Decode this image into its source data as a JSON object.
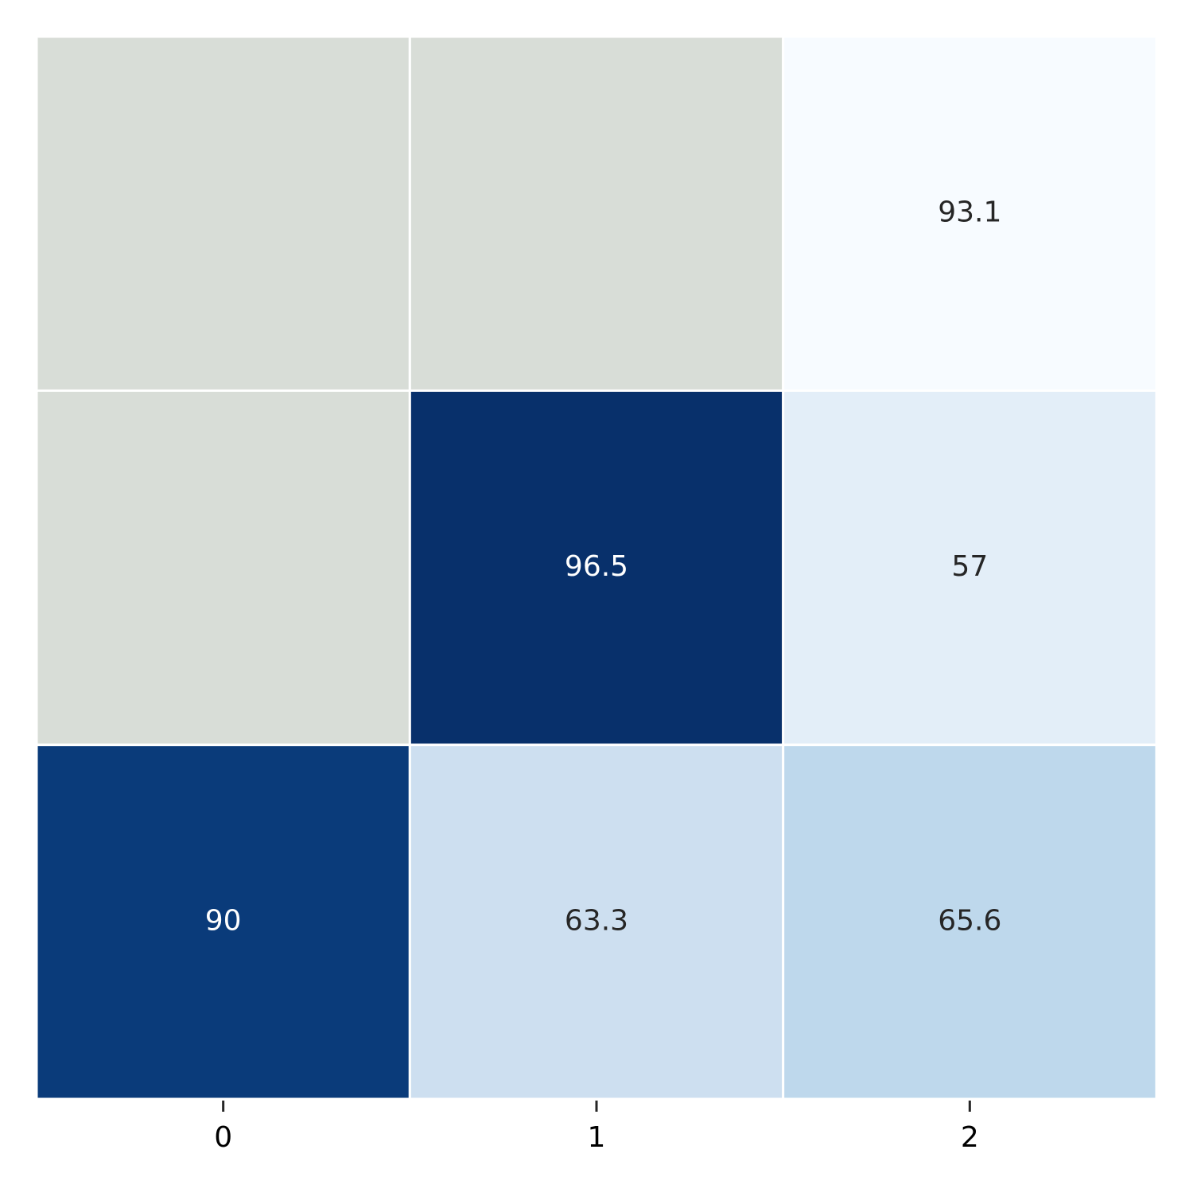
{
  "chart_data": {
    "type": "heatmap",
    "x_categories": [
      "0",
      "1",
      "2"
    ],
    "values": [
      [
        null,
        null,
        93.1
      ],
      [
        null,
        96.5,
        57
      ],
      [
        90,
        63.3,
        65.6
      ]
    ],
    "colors": [
      [
        null,
        null,
        "#f7fbff"
      ],
      [
        null,
        "#08306b",
        "#e3eef8"
      ],
      [
        "#0a3b7a",
        "#cddff0",
        "#bed8ec"
      ]
    ],
    "mask_color": "#d8ddd7"
  }
}
